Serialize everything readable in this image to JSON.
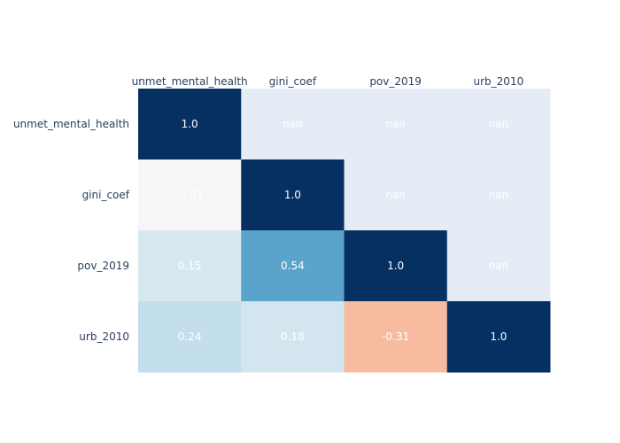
{
  "chart_data": {
    "type": "heatmap",
    "title": "",
    "x_categories": [
      "unmet_mental_health",
      "gini_coef",
      "pov_2019",
      "urb_2010"
    ],
    "y_categories": [
      "unmet_mental_health",
      "gini_coef",
      "pov_2019",
      "urb_2010"
    ],
    "values": [
      [
        1.0,
        null,
        null,
        null
      ],
      [
        -0.01,
        1.0,
        null,
        null
      ],
      [
        0.15,
        0.54,
        1.0,
        null
      ],
      [
        0.24,
        0.18,
        -0.31,
        1.0
      ]
    ],
    "labels": [
      [
        "1.0",
        "nan",
        "nan",
        "nan"
      ],
      [
        "-0.01",
        "1.0",
        "nan",
        "nan"
      ],
      [
        "0.15",
        "0.54",
        "1.0",
        "nan"
      ],
      [
        "0.24",
        "0.18",
        "-0.31",
        "1.0"
      ]
    ],
    "x_axis_side": "top",
    "colorscale": "RdBu",
    "zrange": [
      -1,
      1
    ],
    "nan_color": "#e5ecf6",
    "colors": {
      "1.0": "#053061",
      "-0.01": "#f7f6f6",
      "0.15": "#d7e8f1",
      "0.54": "#5aa3cb",
      "0.24": "#c3dfeb",
      "0.18": "#d3e6f0",
      "-0.31": "#f7bca0"
    },
    "legend": false
  }
}
